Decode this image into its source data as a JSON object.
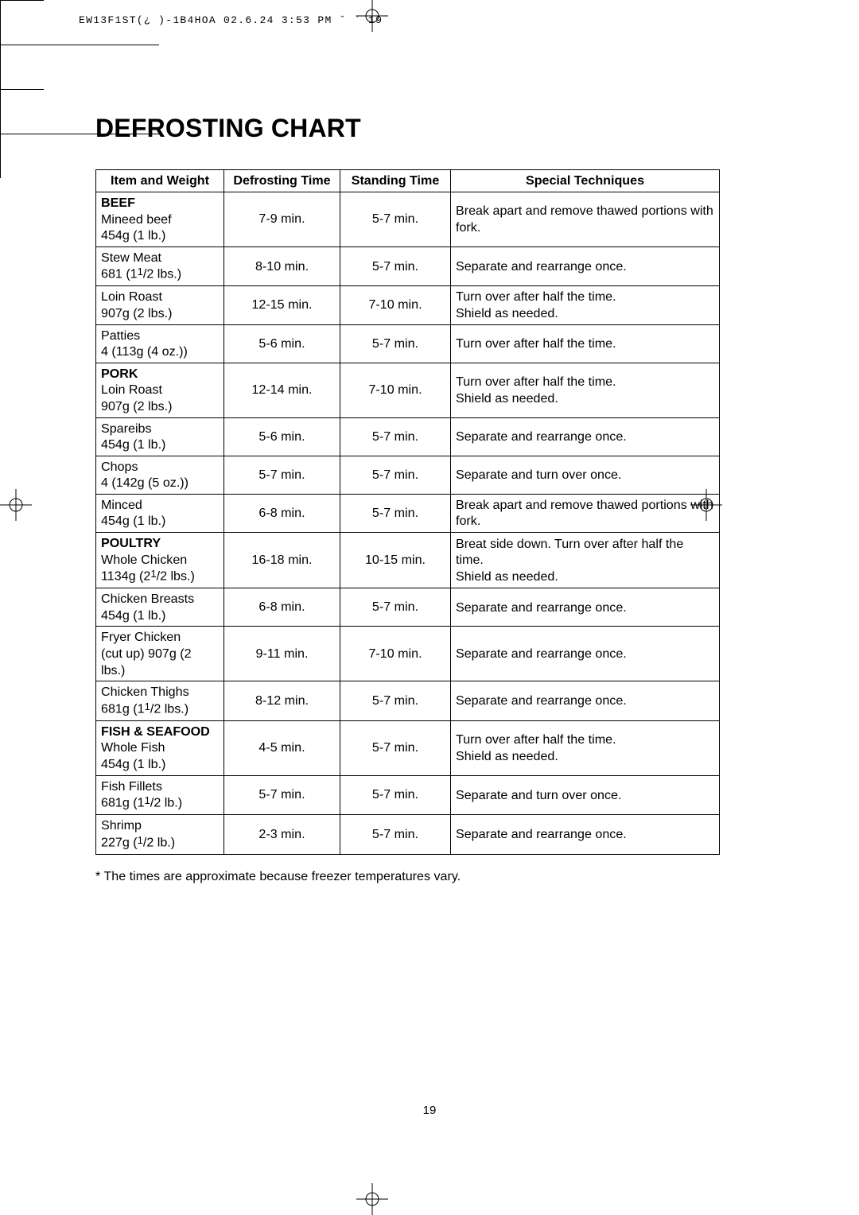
{
  "header_meta": "EW13F1ST(¿ )-1B4HOA 02.6.24 3:53 PM ˘  `  19",
  "page_title": "DEFROSTING CHART",
  "page_number": "19",
  "columns": [
    "Item and Weight",
    "Defrosting Time",
    "Standing Time",
    "Special Techniques"
  ],
  "rows": [
    {
      "category": "BEEF",
      "item": "Mineed beef\n454g (1 lb.)",
      "defrost": "7-9 min.",
      "stand": "5-7 min.",
      "tech": "Break apart and remove thawed portions with fork."
    },
    {
      "item_html": "Stew Meat<br>681 (1<span class='frac-sup'>1</span>/<span class='frac-sub'>2</span> lbs.)",
      "defrost": "8-10 min.",
      "stand": "5-7 min.",
      "tech": "Separate and rearrange once."
    },
    {
      "item": "Loin Roast\n907g (2 lbs.)",
      "defrost": "12-15 min.",
      "stand": "7-10 min.",
      "tech": "Turn over after half the time.\nShield as needed."
    },
    {
      "item": "Patties\n4 (113g (4 oz.))",
      "defrost": "5-6 min.",
      "stand": "5-7 min.",
      "tech": "Turn over after half the time."
    },
    {
      "category": "PORK",
      "item": "Loin Roast\n907g (2 lbs.)",
      "defrost": "12-14 min.",
      "stand": "7-10 min.",
      "tech": "Turn over after half the time.\nShield as needed."
    },
    {
      "item": "Spareibs\n454g (1 lb.)",
      "defrost": "5-6 min.",
      "stand": "5-7 min.",
      "tech": "Separate and rearrange once."
    },
    {
      "item": "Chops\n4 (142g (5 oz.))",
      "defrost": "5-7 min.",
      "stand": "5-7 min.",
      "tech": "Separate and turn over once."
    },
    {
      "item": "Minced\n454g (1 lb.)",
      "defrost": "6-8 min.",
      "stand": "5-7 min.",
      "tech": "Break apart and remove thawed portions with fork."
    },
    {
      "category": "POULTRY",
      "item_html": "Whole Chicken<br>1134g (2<span class='frac-sup'>1</span>/<span class='frac-sub'>2</span> lbs.)",
      "defrost": "16-18 min.",
      "stand": "10-15 min.",
      "tech": "Breat side down. Turn over after half the time.\nShield as needed."
    },
    {
      "item": "Chicken Breasts\n454g (1 lb.)",
      "defrost": "6-8 min.",
      "stand": "5-7 min.",
      "tech": "Separate and rearrange once."
    },
    {
      "item": "Fryer Chicken\n(cut up) 907g (2 lbs.)",
      "defrost": "9-11 min.",
      "stand": "7-10 min.",
      "tech": "Separate and rearrange once."
    },
    {
      "item_html": "Chicken Thighs<br>681g (1<span class='frac-sup'>1</span>/<span class='frac-sub'>2</span> lbs.)",
      "defrost": "8-12 min.",
      "stand": "5-7 min.",
      "tech": "Separate and rearrange once."
    },
    {
      "category": "FISH & SEAFOOD",
      "item": "Whole Fish\n454g (1 lb.)",
      "defrost": "4-5 min.",
      "stand": "5-7 min.",
      "tech": "Turn over after half the time.\nShield as needed."
    },
    {
      "item_html": "Fish Fillets<br>681g (1<span class='frac-sup'>1</span>/<span class='frac-sub'>2</span> lb.)",
      "defrost": "5-7 min.",
      "stand": "5-7 min.",
      "tech": "Separate and turn over once."
    },
    {
      "item_html": "Shrimp<br>227g (<span class='frac-sup'>1</span>/<span class='frac-sub'>2</span> lb.)",
      "defrost": "2-3 min.",
      "stand": "5-7 min.",
      "tech": "Separate and rearrange once."
    }
  ],
  "footnote": "* The times are approximate because freezer temperatures vary."
}
